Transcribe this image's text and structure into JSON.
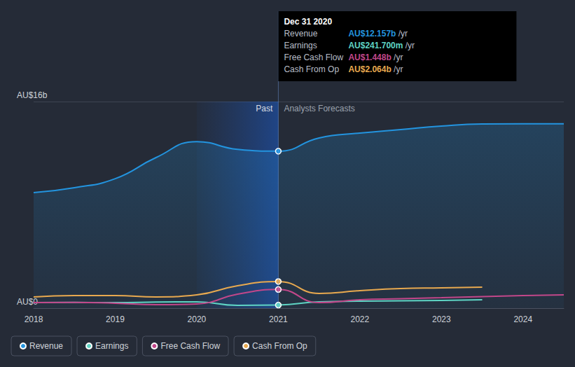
{
  "chart_data": {
    "type": "line",
    "x": [
      2018,
      2018.5,
      2019,
      2019.5,
      2020,
      2020.5,
      2021,
      2021.5,
      2022,
      2022.5,
      2023,
      2023.5,
      2024,
      2024.5
    ],
    "series": [
      {
        "name": "Revenue",
        "color": "#2394df",
        "type": "area",
        "values": [
          8.95,
          9.33,
          10.03,
          11.66,
          12.9,
          12.3,
          12.157,
          13.18,
          13.56,
          13.83,
          14.1,
          14.26,
          14.28,
          14.28
        ]
      },
      {
        "name": "Earnings",
        "color": "#5fd4c4",
        "type": "line",
        "values": [
          0.43,
          0.45,
          0.43,
          0.47,
          0.49,
          0.22,
          0.2417,
          0.49,
          0.54,
          0.57,
          0.6,
          0.65,
          null,
          null
        ]
      },
      {
        "name": "Free Cash Flow",
        "color": "#c2478a",
        "type": "line",
        "values": [
          0.43,
          0.45,
          0.38,
          0.27,
          0.33,
          1.08,
          1.448,
          0.43,
          0.65,
          0.73,
          0.81,
          0.9,
          0.97,
          1.03
        ]
      },
      {
        "name": "Cash From Op",
        "color": "#e8a94f",
        "type": "line",
        "values": [
          0.87,
          0.98,
          0.98,
          0.87,
          1.03,
          1.74,
          2.064,
          1.14,
          1.36,
          1.52,
          1.57,
          1.63,
          null,
          null
        ]
      }
    ],
    "xlim": [
      2018,
      2024.5
    ],
    "xticks": [
      2018,
      2019,
      2020,
      2021,
      2022,
      2023,
      2024
    ],
    "ylim": [
      0,
      16
    ],
    "yticks": [
      {
        "value": 0,
        "label": "AU$0"
      },
      {
        "value": 16,
        "label": "AU$16b"
      }
    ],
    "grid": true,
    "legend": "bottom-left",
    "highlight_range": [
      2020,
      2021
    ],
    "annotations": [
      {
        "text": "Past",
        "x": 2021,
        "side": "left"
      },
      {
        "text": "Analysts Forecasts",
        "x": 2021,
        "side": "right"
      }
    ],
    "tooltip_box": {
      "title": "Dec 31 2020",
      "x": 2021,
      "suffix": "/yr",
      "rows": [
        {
          "series": "Revenue",
          "value": 12.157,
          "label": "AU$12.157b"
        },
        {
          "series": "Earnings",
          "value": 0.2417,
          "label": "AU$241.700m"
        },
        {
          "series": "Free Cash Flow",
          "value": 1.448,
          "label": "AU$1.448b"
        },
        {
          "series": "Cash From Op",
          "value": 2.064,
          "label": "AU$2.064b"
        }
      ]
    }
  }
}
